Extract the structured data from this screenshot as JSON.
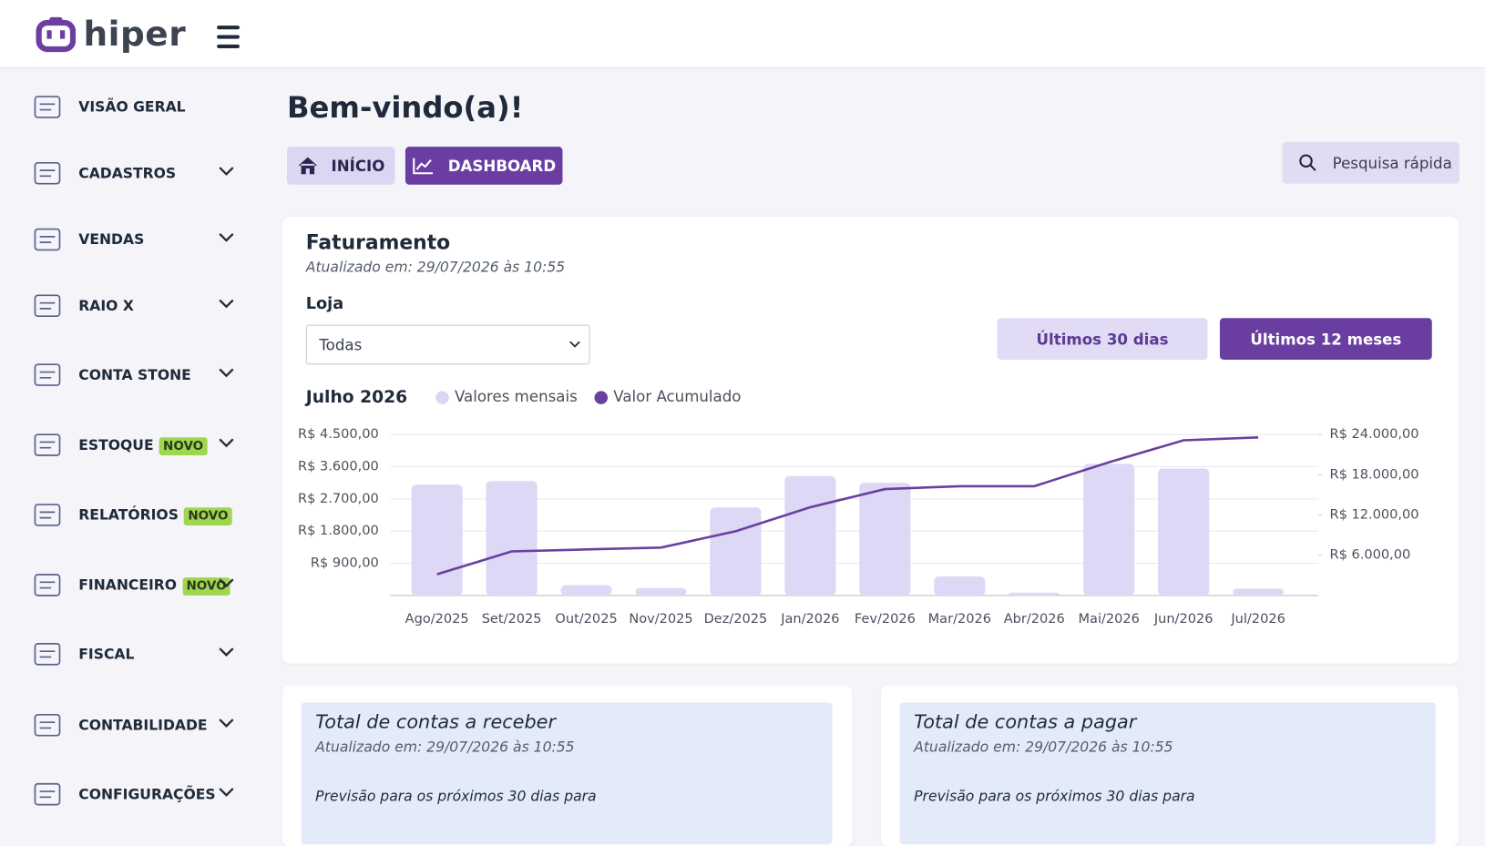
{
  "header": {
    "logo": "hiper"
  },
  "sidebar": {
    "items": [
      {
        "label": "VISÃO GERAL"
      },
      {
        "label": "CADASTROS"
      },
      {
        "label": "VENDAS"
      },
      {
        "label": "RAIO X"
      },
      {
        "label": "CONTA STONE"
      },
      {
        "label": "ESTOQUE",
        "badge": "NOVO"
      },
      {
        "label": "RELATÓRIOS",
        "badge": "NOVO"
      },
      {
        "label": "FINANCEIRO",
        "badge": "NOVO"
      },
      {
        "label": "FISCAL"
      },
      {
        "label": "CONTABILIDADE"
      },
      {
        "label": "CONFIGURAÇÕES"
      }
    ]
  },
  "page": {
    "title": "Bem-vindo(a)!",
    "tabs": [
      "INÍCIO",
      "DASHBOARD"
    ],
    "search": "Pesquisa rápida"
  },
  "revenue_card": {
    "title": "Faturamento",
    "updated": "Atualizado em: 29/07/2026 às 10:55",
    "store_label": "Loja",
    "store_value": "Todas",
    "ranges": [
      "Últimos 30 dias",
      "Últimos 12 meses"
    ]
  },
  "chart_data": {
    "type": "bar",
    "subtitle": "Julho 2026",
    "categories": [
      "Ago/2025",
      "Set/2025",
      "Out/2025",
      "Nov/2025",
      "Dez/2025",
      "Jan/2026",
      "Fev/2026",
      "Mar/2026",
      "Abr/2026",
      "Mai/2026",
      "Jun/2026",
      "Jul/2026"
    ],
    "series": [
      {
        "name": "Valores mensais",
        "color": "#ddd8f5",
        "values": [
          3100,
          3200,
          290,
          210,
          2460,
          3340,
          3150,
          530,
          80,
          3680,
          3550,
          190
        ]
      },
      {
        "name": "Valor Acumulado",
        "color": "#6b3fa0",
        "type": "line",
        "axis": "y2",
        "values": [
          3150,
          6570,
          6860,
          7140,
          9570,
          13150,
          15860,
          16290,
          16290,
          19860,
          23140,
          23570
        ]
      }
    ],
    "ylim": [
      0,
      4500
    ],
    "yticks": [
      {
        "value": 900,
        "label": "R$ 900,00"
      },
      {
        "value": 1800,
        "label": "R$ 1.800,00"
      },
      {
        "value": 2700,
        "label": "R$ 2.700,00"
      },
      {
        "value": 3600,
        "label": "R$ 3.600,00"
      },
      {
        "value": 4500,
        "label": "R$ 4.500,00"
      }
    ],
    "y2lim": [
      0,
      24000
    ],
    "y2ticks": [
      {
        "value": 6000,
        "label": "R$ 6.000,00"
      },
      {
        "value": 12000,
        "label": "R$ 12.000,00"
      },
      {
        "value": 18000,
        "label": "R$ 18.000,00"
      },
      {
        "value": 24000,
        "label": "R$ 24.000,00"
      }
    ],
    "grid": true
  },
  "cards": [
    {
      "title": "Total de contas a receber",
      "updated": "Atualizado em: 29/07/2026 às 10:55",
      "note": "Previsão para os próximos 30 dias para"
    },
    {
      "title": "Total de contas a pagar",
      "updated": "Atualizado em: 29/07/2026 às 10:55",
      "note": "Previsão para os próximos 30 dias para"
    }
  ]
}
